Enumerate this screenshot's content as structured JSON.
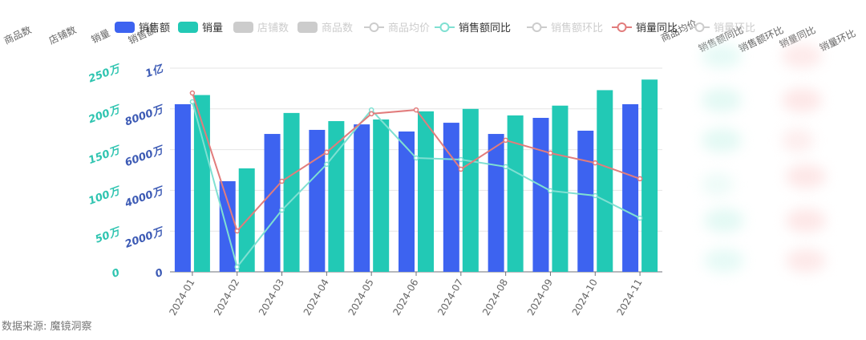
{
  "legend": {
    "items": [
      {
        "label": "销售额",
        "type": "bar",
        "color": "#3D63F0",
        "active": true
      },
      {
        "label": "销量",
        "type": "bar",
        "color": "#22C9B5",
        "active": true
      },
      {
        "label": "店铺数",
        "type": "bar",
        "color": "#CCCCCC",
        "active": false
      },
      {
        "label": "商品数",
        "type": "bar",
        "color": "#CCCCCC",
        "active": false
      },
      {
        "label": "商品均价",
        "type": "line",
        "color": "#CCCCCC",
        "active": false
      },
      {
        "label": "销售额同比",
        "type": "line",
        "color": "#7FE0D2",
        "active": true
      },
      {
        "label": "销售额环比",
        "type": "line",
        "color": "#CCCCCC",
        "active": false
      },
      {
        "label": "销量同比",
        "type": "line",
        "color": "#E27C7C",
        "active": true
      },
      {
        "label": "销量环比",
        "type": "line",
        "color": "#CCCCCC",
        "active": false
      }
    ]
  },
  "left_axis_names": [
    "商品数",
    "店铺数",
    "销量",
    "销售额"
  ],
  "right_axis_names": [
    "商品均价",
    "销售额同比",
    "销售额环比",
    "销量同比",
    "销量环比"
  ],
  "source_text": "数据来源: 魔镜洞察",
  "colors": {
    "sales_bar": "#3D63F0",
    "volume_bar": "#22C9B5",
    "sales_yoy_line": "#7FE0D2",
    "volume_yoy_line": "#E27C7C",
    "sales_axis": "#3D5BB5",
    "volume_axis": "#2EC4B0",
    "grid": "#E6E6E6"
  },
  "chart_data": {
    "type": "bar",
    "title": "",
    "categories": [
      "2024-01",
      "2024-02",
      "2024-03",
      "2024-04",
      "2024-05",
      "2024-06",
      "2024-07",
      "2024-08",
      "2024-09",
      "2024-10",
      "2024-11"
    ],
    "y_axes": [
      {
        "name": "销售额",
        "ticks": [
          "0",
          "2000万",
          "4000万",
          "6000万",
          "8000万",
          "1亿"
        ],
        "ylim": [
          0,
          100000000
        ],
        "color": "#3D5BB5"
      },
      {
        "name": "销量",
        "ticks": [
          "0",
          "50万",
          "100万",
          "150万",
          "200万",
          "250万"
        ],
        "ylim": [
          0,
          2500000
        ],
        "color": "#2EC4B0"
      }
    ],
    "series": [
      {
        "name": "销售额",
        "type": "bar",
        "axis": 0,
        "unit": "万",
        "values": [
          8230,
          4450,
          6770,
          6970,
          7240,
          6890,
          7320,
          6770,
          7560,
          6930,
          8230
        ]
      },
      {
        "name": "销量",
        "type": "bar",
        "axis": 1,
        "unit": "万",
        "values": [
          217,
          127,
          195,
          185,
          187,
          197,
          200,
          192,
          204,
          223,
          236
        ]
      },
      {
        "name": "销售额同比",
        "type": "line",
        "axis": "hidden",
        "unit": "relative (0-100 of plot height)",
        "values": [
          83.5,
          2.4,
          30.3,
          52.8,
          79.5,
          55.9,
          55.1,
          51.6,
          39.8,
          37.4,
          26.4
        ]
      },
      {
        "name": "销量同比",
        "type": "line",
        "axis": "hidden",
        "unit": "relative (0-100 of plot height)",
        "values": [
          87.8,
          20.1,
          44.5,
          58.7,
          77.6,
          79.5,
          50.4,
          64.6,
          58.3,
          53.5,
          45.7
        ]
      }
    ],
    "hidden_series": [
      "店铺数",
      "商品数",
      "商品均价",
      "销售额环比",
      "销量环比"
    ],
    "grid": true,
    "legend_position": "top"
  }
}
